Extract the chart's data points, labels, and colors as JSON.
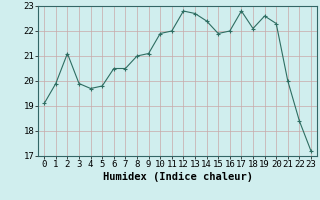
{
  "x": [
    0,
    1,
    2,
    3,
    4,
    5,
    6,
    7,
    8,
    9,
    10,
    11,
    12,
    13,
    14,
    15,
    16,
    17,
    18,
    19,
    20,
    21,
    22,
    23
  ],
  "y": [
    19.1,
    19.9,
    21.1,
    19.9,
    19.7,
    19.8,
    20.5,
    20.5,
    21.0,
    21.1,
    21.9,
    22.0,
    22.8,
    22.7,
    22.4,
    21.9,
    22.0,
    22.8,
    22.1,
    22.6,
    22.3,
    20.0,
    18.4,
    17.2
  ],
  "line_color": "#2e6e62",
  "marker": "x",
  "marker_size": 3,
  "bg_color": "#d0eeee",
  "grid_color_v": "#c8a8a8",
  "grid_color_h": "#c8a8a8",
  "xlabel": "Humidex (Indice chaleur)",
  "ylim": [
    17,
    23
  ],
  "yticks": [
    17,
    18,
    19,
    20,
    21,
    22,
    23
  ],
  "xticks": [
    0,
    1,
    2,
    3,
    4,
    5,
    6,
    7,
    8,
    9,
    10,
    11,
    12,
    13,
    14,
    15,
    16,
    17,
    18,
    19,
    20,
    21,
    22,
    23
  ],
  "xlabel_fontsize": 7.5,
  "tick_fontsize": 6.5
}
